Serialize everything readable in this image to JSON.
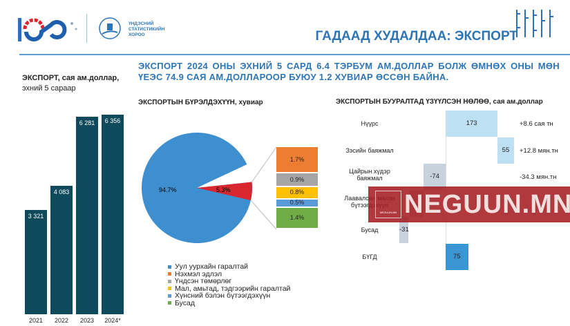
{
  "header": {
    "org_line1": "ҮНДЭСНИЙ",
    "org_line2": "СТАТИСТИКИЙН",
    "org_line3": "ХОРОО",
    "title": "ГАДААД ХУДАЛДАА: ЭКСПОРТ"
  },
  "headline": "ЭКСПОРТ 2024 ОНЫ ЭХНИЙ 5 САРД 6.4 ТЭРБУМ АМ.ДОЛЛАР БОЛЖ ӨМНӨХ ОНЫ МӨН ҮЕЭС 74.9 САЯ АМ.ДОЛЛАРООР БУЮУ 1.2 ХУВИАР ӨССӨН БАЙНА.",
  "watermark": "NEGUUN.MN",
  "watermark_small": "NEGUUN.MN",
  "chart_data": [
    {
      "type": "bar",
      "title": "ЭКСПОРТ, сая ам.доллар,",
      "subtitle": "эхний 5 сараар",
      "categories": [
        "2021",
        "2022",
        "2023",
        "2024*"
      ],
      "values": [
        3321,
        4083,
        6281,
        6356
      ],
      "labels": [
        "3 321",
        "4 083",
        "6 281",
        "6 356"
      ]
    },
    {
      "type": "pie",
      "title": "ЭКСПОРТЫН БҮРЭЛДЭХҮҮН, хувиар",
      "slices": [
        {
          "name": "Уул уурхайн гаралтай",
          "value": 94.7,
          "label": "94.7%",
          "color": "#3e8fd0"
        },
        {
          "name": "Бусад (задаргаа)",
          "value": 5.3,
          "label": "5.3%",
          "color": "#d9262f"
        }
      ],
      "breakdown": [
        {
          "name": "Нэхмэл эдлэл",
          "value": 1.7,
          "label": "1.7%",
          "color": "#ed7d31"
        },
        {
          "name": "Үндсэн төмөрлөг",
          "value": 0.9,
          "label": "0.9%",
          "color": "#a5a5a5"
        },
        {
          "name": "Мал, амьтад, тэдгээрийн гаралтай",
          "value": 0.8,
          "label": "0.8%",
          "color": "#ffc000"
        },
        {
          "name": "Хүнсний бэлэн бүтээгдэхүүн",
          "value": 0.5,
          "label": "0.5%",
          "color": "#5b9bd5"
        },
        {
          "name": "Бусад",
          "value": 1.4,
          "label": "1.4%",
          "color": "#70ad47"
        }
      ],
      "legend": [
        {
          "name": "Уул уурхайн гаралтай",
          "color": "#3e8fd0"
        },
        {
          "name": "Нэхмэл эдлэл",
          "color": "#ed7d31"
        },
        {
          "name": "Үндсэн төмөрлөг",
          "color": "#a5a5a5"
        },
        {
          "name": "Мал, амьтад, тэдгээрийн гаралтай",
          "color": "#ffc000"
        },
        {
          "name": "Хүнсний бэлэн бүтээгдэхүүн",
          "color": "#5b9bd5"
        },
        {
          "name": "Бусад",
          "color": "#70ad47"
        }
      ]
    },
    {
      "type": "bar",
      "title": "ЭКСПОРТЫН БУУРАЛТАД ҮЗҮҮЛСЭН НӨЛӨӨ, сая ам.доллар",
      "rows": [
        {
          "category": "Нүүрс",
          "value": 173,
          "label": "173",
          "note": "+8.6 сая тн"
        },
        {
          "category": "Зэсийн баяжмал",
          "value": 55,
          "label": "55",
          "note": "+12.8 мян.тн"
        },
        {
          "category": "Цайрын хүдэр баяжмал",
          "value": -74,
          "label": "-74",
          "note": "-34.3 мян.тн"
        },
        {
          "category": "Лаавалсан махан бүтээгдэхүүн",
          "value": null,
          "label": "",
          "note": ""
        },
        {
          "category": "Бусад",
          "value": -31,
          "label": "-31",
          "note": ""
        },
        {
          "category": "БҮГД",
          "value": 75,
          "label": "75",
          "note": ""
        }
      ]
    }
  ]
}
